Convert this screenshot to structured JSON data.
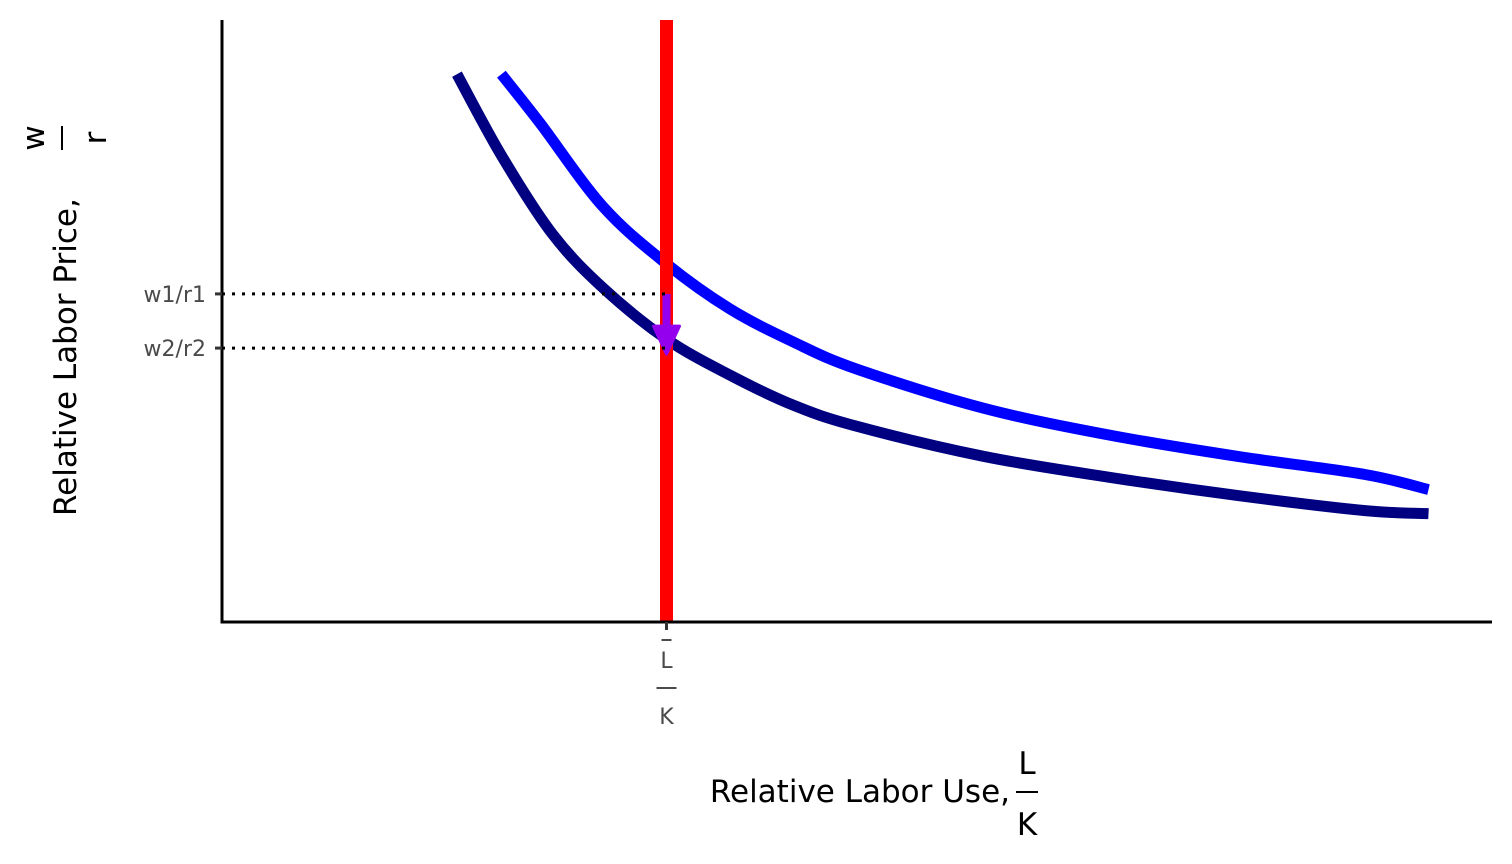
{
  "chart_data": {
    "type": "line",
    "title": "",
    "xlabel": "Relative Labor Use, ",
    "xlabel_fraction": {
      "numerator": "L",
      "denominator": "K"
    },
    "ylabel": "Relative Labor Price, ",
    "ylabel_fraction": {
      "numerator": "w",
      "denominator": "r"
    },
    "xlim": [
      0,
      10
    ],
    "ylim": [
      0,
      10
    ],
    "grid": false,
    "legend": "none",
    "series": [
      {
        "color": "#0000ff",
        "x": [
          2.2,
          2.5,
          3.0,
          3.5,
          4.0,
          4.5,
          5.0,
          6.0,
          7.0,
          8.0,
          9.0,
          9.5
        ],
        "y": [
          9.1,
          8.3,
          6.9,
          5.95,
          5.2,
          4.65,
          4.2,
          3.55,
          3.1,
          2.75,
          2.45,
          2.2
        ]
      },
      {
        "color": "#000080",
        "x": [
          1.85,
          2.2,
          2.6,
          3.0,
          3.5,
          4.0,
          4.5,
          5.0,
          6.0,
          7.0,
          8.0,
          9.0,
          9.5
        ],
        "y": [
          9.1,
          7.75,
          6.45,
          5.55,
          4.7,
          4.1,
          3.6,
          3.25,
          2.75,
          2.4,
          2.1,
          1.85,
          1.8
        ]
      }
    ],
    "vertical_line": {
      "x": 3.5,
      "color": "#ff0000"
    },
    "x_tick": {
      "value": 3.5,
      "numerator": "L",
      "denominator": "K",
      "overline": true
    },
    "y_ticks": [
      {
        "value": 5.45,
        "label": "w1/r1"
      },
      {
        "value": 4.55,
        "label": "w2/r2"
      }
    ],
    "arrow": {
      "x": 3.5,
      "from_y": 5.45,
      "to_y": 4.55,
      "color": "#9400ee"
    }
  }
}
